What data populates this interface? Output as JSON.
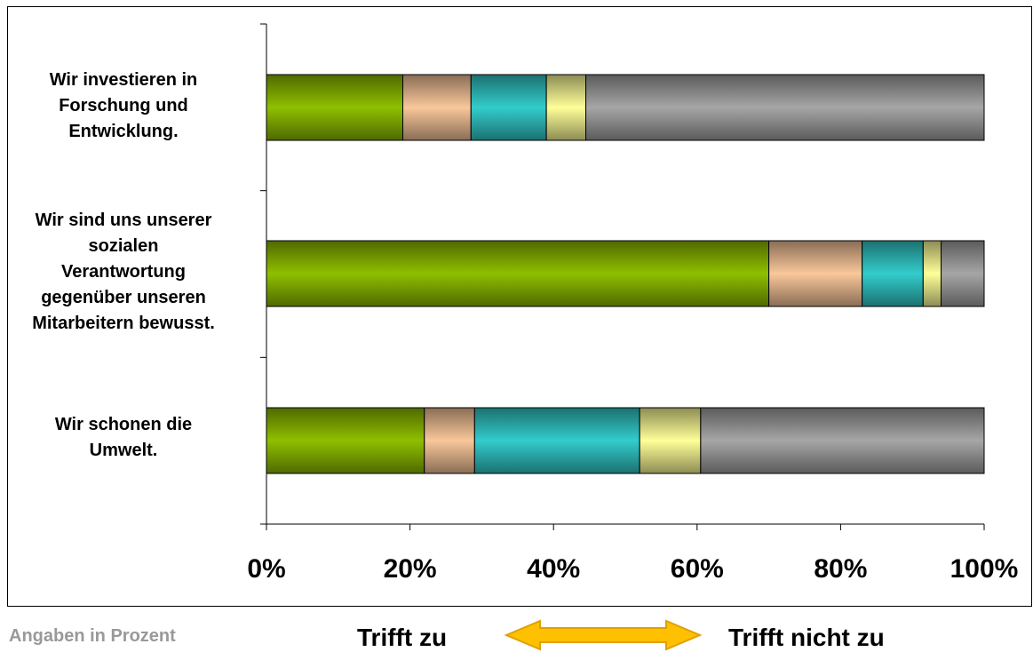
{
  "chart_data": {
    "type": "bar",
    "orientation": "horizontal",
    "stacked": true,
    "categories": [
      "Wir investieren in Forschung und Entwicklung.",
      "Wir sind uns unserer sozialen Verantwortung gegenüber unseren Mitarbeitern bewusst.",
      "Wir schonen die Umwelt."
    ],
    "series": [
      {
        "color": "#8fbf00",
        "values": [
          19,
          70,
          22
        ]
      },
      {
        "color": "#f9c79a",
        "values": [
          9.5,
          13,
          7
        ]
      },
      {
        "color": "#33cccc",
        "values": [
          10.5,
          8.5,
          23
        ]
      },
      {
        "color": "#ffff99",
        "values": [
          5.5,
          2.5,
          8.5
        ]
      },
      {
        "color": "#a6a6a6",
        "values": [
          55.5,
          6,
          39.5
        ]
      }
    ],
    "x_ticks": [
      "0%",
      "20%",
      "40%",
      "60%",
      "80%",
      "100%"
    ],
    "xlim": [
      0,
      100
    ],
    "grid": false,
    "legend": "none"
  },
  "labels": {
    "cat1": [
      "Wir investieren in",
      "Forschung und",
      "Entwicklung."
    ],
    "cat2": [
      "Wir sind uns unserer",
      "sozialen",
      "Verantwortung",
      "gegenüber unseren",
      "Mitarbeitern bewusst."
    ],
    "cat3": [
      "Wir schonen die",
      "Umwelt."
    ]
  },
  "footer": {
    "note": "Angaben in Prozent",
    "left": "Trifft zu",
    "right": "Trifft nicht zu"
  },
  "colors": {
    "arrow_fill": "#ffc000",
    "arrow_stroke": "#e0a000"
  }
}
